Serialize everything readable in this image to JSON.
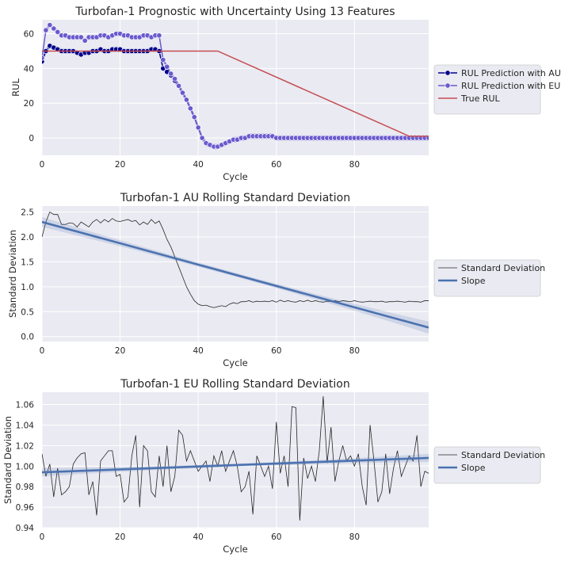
{
  "chart_data": [
    {
      "type": "line",
      "title": "Turbofan-1 Prognostic with Uncertainty Using 13 Features",
      "xlabel": "Cycle",
      "ylabel": "RUL",
      "xlim": [
        0,
        99
      ],
      "ylim": [
        -10,
        68
      ],
      "xticks": [
        "0",
        "20",
        "40",
        "60",
        "80"
      ],
      "yticks": [
        "0",
        "20",
        "40",
        "60"
      ],
      "legend_position": "outside-right",
      "series": [
        {
          "name": "RUL Prediction with AU",
          "color": "#00008b",
          "marker": "circle",
          "values": [
            44,
            50,
            53,
            52,
            51,
            50,
            50,
            50,
            50,
            49,
            48,
            49,
            49,
            50,
            50,
            51,
            50,
            50,
            51,
            51,
            51,
            50,
            50,
            50,
            50,
            50,
            50,
            50,
            51,
            51,
            50,
            40,
            38,
            36,
            33,
            30,
            26,
            22,
            17,
            12,
            6,
            0,
            -3,
            -4,
            -5,
            -5,
            -4,
            -3,
            -2,
            -1,
            -1,
            0,
            0,
            1,
            1,
            1,
            1,
            1,
            1,
            1,
            0,
            0,
            0,
            0,
            0,
            0,
            0,
            0,
            0,
            0,
            0,
            0,
            0,
            0,
            0,
            0,
            0,
            0,
            0,
            0,
            0,
            0,
            0,
            0,
            0,
            0,
            0,
            0,
            0,
            0,
            0,
            0,
            0,
            0,
            0,
            0,
            0,
            0,
            0,
            0
          ]
        },
        {
          "name": "RUL Prediction with EU",
          "color": "#6a5acd",
          "marker": "circle",
          "values": [
            46,
            62,
            65,
            63,
            61,
            59,
            59,
            58,
            58,
            58,
            58,
            56,
            58,
            58,
            58,
            59,
            59,
            58,
            59,
            60,
            60,
            59,
            59,
            58,
            58,
            58,
            59,
            59,
            58,
            59,
            59,
            45,
            41,
            37,
            34,
            30,
            26,
            22,
            17,
            12,
            6,
            0,
            -3,
            -4,
            -5,
            -5,
            -4,
            -3,
            -2,
            -1,
            -1,
            0,
            0,
            1,
            1,
            1,
            1,
            1,
            1,
            1,
            0,
            0,
            0,
            0,
            0,
            0,
            0,
            0,
            0,
            0,
            0,
            0,
            0,
            0,
            0,
            0,
            0,
            0,
            0,
            0,
            0,
            0,
            0,
            0,
            0,
            0,
            0,
            0,
            0,
            0,
            0,
            0,
            0,
            0,
            0,
            0,
            0,
            0,
            0,
            0
          ]
        },
        {
          "name": "True RUL",
          "color": "#c44e52",
          "marker": "none",
          "x": [
            0,
            45,
            94,
            99
          ],
          "values": [
            50,
            50,
            1,
            1
          ]
        }
      ]
    },
    {
      "type": "line",
      "title": "Turbofan-1 AU Rolling Standard Deviation",
      "xlabel": "Cycle",
      "ylabel": "Standard Deviation",
      "xlim": [
        0,
        99
      ],
      "ylim": [
        -0.1,
        2.62
      ],
      "xticks": [
        "0",
        "20",
        "40",
        "60",
        "80"
      ],
      "yticks": [
        "0.0",
        "0.5",
        "1.0",
        "1.5",
        "2.0",
        "2.5"
      ],
      "legend_position": "outside-right",
      "series": [
        {
          "name": "Standard Deviation",
          "color": "#262626",
          "values": [
            2.0,
            2.3,
            2.5,
            2.45,
            2.45,
            2.25,
            2.25,
            2.28,
            2.27,
            2.2,
            2.3,
            2.25,
            2.2,
            2.3,
            2.35,
            2.28,
            2.35,
            2.3,
            2.37,
            2.32,
            2.31,
            2.33,
            2.35,
            2.31,
            2.33,
            2.24,
            2.3,
            2.25,
            2.35,
            2.27,
            2.32,
            2.15,
            1.95,
            1.8,
            1.6,
            1.4,
            1.2,
            1.0,
            0.85,
            0.72,
            0.65,
            0.62,
            0.63,
            0.6,
            0.58,
            0.6,
            0.62,
            0.6,
            0.65,
            0.68,
            0.66,
            0.7,
            0.7,
            0.72,
            0.69,
            0.71,
            0.7,
            0.71,
            0.7,
            0.72,
            0.69,
            0.73,
            0.7,
            0.72,
            0.7,
            0.69,
            0.72,
            0.7,
            0.73,
            0.7,
            0.72,
            0.7,
            0.69,
            0.71,
            0.7,
            0.72,
            0.7,
            0.72,
            0.71,
            0.7,
            0.72,
            0.7,
            0.69,
            0.7,
            0.71,
            0.7,
            0.7,
            0.71,
            0.69,
            0.7,
            0.7,
            0.71,
            0.7,
            0.69,
            0.71,
            0.7,
            0.7,
            0.69,
            0.72,
            0.72
          ]
        },
        {
          "name": "Slope",
          "color": "#4c72b0",
          "x": [
            0,
            99
          ],
          "values": [
            2.3,
            0.18
          ],
          "ci_start": 0.1,
          "ci_mid": 0.04,
          "ci_end": 0.12
        }
      ]
    },
    {
      "type": "line",
      "title": "Turbofan-1 EU Rolling Standard Deviation",
      "xlabel": "Cycle",
      "ylabel": "Standard Deviation",
      "xlim": [
        0,
        99
      ],
      "ylim": [
        0.94,
        1.072
      ],
      "xticks": [
        "0",
        "20",
        "40",
        "60",
        "80"
      ],
      "yticks": [
        "0.94",
        "0.96",
        "0.98",
        "1.00",
        "1.02",
        "1.04",
        "1.06"
      ],
      "legend_position": "outside-right",
      "series": [
        {
          "name": "Standard Deviation",
          "color": "#262626",
          "values": [
            1.012,
            0.99,
            1.002,
            0.97,
            0.998,
            0.972,
            0.975,
            0.98,
            1.002,
            1.008,
            1.012,
            1.013,
            0.972,
            0.985,
            0.952,
            1.005,
            1.01,
            1.015,
            1.015,
            0.99,
            0.992,
            0.965,
            0.97,
            1.01,
            1.03,
            0.96,
            1.02,
            1.015,
            0.975,
            0.97,
            1.01,
            0.98,
            1.02,
            0.975,
            0.99,
            1.035,
            1.03,
            1.005,
            1.015,
            1.005,
            0.995,
            1.0,
            1.005,
            0.985,
            1.01,
            1.0,
            1.015,
            0.995,
            1.005,
            1.015,
            1.0,
            0.975,
            0.98,
            0.995,
            0.953,
            1.01,
            1.0,
            0.99,
            1.0,
            0.978,
            1.043,
            0.993,
            1.01,
            0.98,
            1.058,
            1.057,
            0.947,
            1.008,
            0.988,
            1.0,
            0.985,
            1.015,
            1.068,
            1.003,
            1.038,
            0.985,
            1.005,
            1.02,
            1.005,
            1.01,
            1.0,
            1.012,
            0.98,
            0.962,
            1.04,
            1.005,
            0.965,
            0.975,
            1.012,
            0.973,
            0.998,
            1.015,
            0.99,
            1.0,
            1.01,
            1.005,
            1.03,
            0.98,
            0.995,
            0.993
          ]
        },
        {
          "name": "Slope",
          "color": "#4c72b0",
          "x": [
            0,
            99
          ],
          "values": [
            0.994,
            1.008
          ],
          "ci_start": 0.004,
          "ci_mid": 0.0015,
          "ci_end": 0.004
        }
      ]
    }
  ]
}
